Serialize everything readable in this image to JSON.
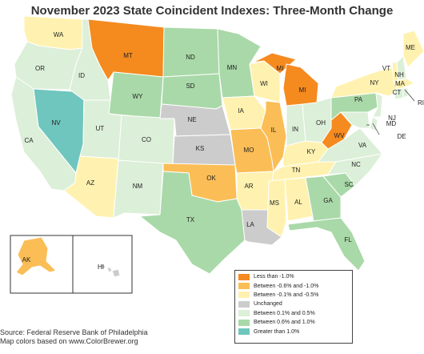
{
  "title": "November 2023 State Coincident Indexes: Three-Month Change",
  "legend": [
    {
      "key": "lt_-1.0",
      "label": "Less than -1.0%",
      "color": "#f58a1f"
    },
    {
      "key": "-0.6_-1.0",
      "label": "Between -0.6% and -1.0%",
      "color": "#fbbd55"
    },
    {
      "key": "-0.1_-0.5",
      "label": "Between -0.1% and -0.5%",
      "color": "#fff2b0"
    },
    {
      "key": "0",
      "label": "Unchanged",
      "color": "#cccccc"
    },
    {
      "key": "0.1_0.5",
      "label": "Between 0.1% and 0.5%",
      "color": "#dcefd8"
    },
    {
      "key": "0.6_1.0",
      "label": "Between 0.6% and 1.0%",
      "color": "#a9d9a8"
    },
    {
      "key": "gt_1.0",
      "label": "Greater than 1.0%",
      "color": "#6fc6be"
    }
  ],
  "states": [
    {
      "abbr": "WA",
      "category": "-0.1_-0.5"
    },
    {
      "abbr": "OR",
      "category": "0.1_0.5"
    },
    {
      "abbr": "CA",
      "category": "0.1_0.5"
    },
    {
      "abbr": "NV",
      "category": "gt_1.0"
    },
    {
      "abbr": "ID",
      "category": "0.1_0.5"
    },
    {
      "abbr": "MT",
      "category": "lt_-1.0"
    },
    {
      "abbr": "WY",
      "category": "0.6_1.0"
    },
    {
      "abbr": "UT",
      "category": "0.1_0.5"
    },
    {
      "abbr": "CO",
      "category": "0.1_0.5"
    },
    {
      "abbr": "AZ",
      "category": "-0.1_-0.5"
    },
    {
      "abbr": "NM",
      "category": "0.1_0.5"
    },
    {
      "abbr": "ND",
      "category": "0.6_1.0"
    },
    {
      "abbr": "SD",
      "category": "0.6_1.0"
    },
    {
      "abbr": "NE",
      "category": "0"
    },
    {
      "abbr": "KS",
      "category": "0"
    },
    {
      "abbr": "OK",
      "category": "-0.6_-1.0"
    },
    {
      "abbr": "TX",
      "category": "0.6_1.0"
    },
    {
      "abbr": "MN",
      "category": "0.6_1.0"
    },
    {
      "abbr": "IA",
      "category": "-0.1_-0.5"
    },
    {
      "abbr": "MO",
      "category": "-0.6_-1.0"
    },
    {
      "abbr": "AR",
      "category": "-0.1_-0.5"
    },
    {
      "abbr": "LA",
      "category": "0"
    },
    {
      "abbr": "WI",
      "category": "-0.1_-0.5"
    },
    {
      "abbr": "IL",
      "category": "-0.6_-1.0"
    },
    {
      "abbr": "MS",
      "category": "-0.1_-0.5"
    },
    {
      "abbr": "AL",
      "category": "-0.1_-0.5"
    },
    {
      "abbr": "TN",
      "category": "-0.1_-0.5"
    },
    {
      "abbr": "KY",
      "category": "-0.1_-0.5"
    },
    {
      "abbr": "IN",
      "category": "0.1_0.5"
    },
    {
      "abbr": "OH",
      "category": "0.1_0.5"
    },
    {
      "abbr": "MI",
      "category": "lt_-1.0"
    },
    {
      "abbr": "MI",
      "category": "lt_-1.0"
    },
    {
      "abbr": "GA",
      "category": "0.6_1.0"
    },
    {
      "abbr": "FL",
      "category": "0.6_1.0"
    },
    {
      "abbr": "SC",
      "category": "0.6_1.0"
    },
    {
      "abbr": "NC",
      "category": "0.1_0.5"
    },
    {
      "abbr": "VA",
      "category": "0.1_0.5"
    },
    {
      "abbr": "WV",
      "category": "lt_-1.0"
    },
    {
      "abbr": "PA",
      "category": "0.6_1.0"
    },
    {
      "abbr": "NY",
      "category": "-0.1_-0.5"
    },
    {
      "abbr": "VT",
      "category": "-0.1_-0.5"
    },
    {
      "abbr": "NH",
      "category": "0.1_0.5"
    },
    {
      "abbr": "ME",
      "category": "-0.1_-0.5"
    },
    {
      "abbr": "MA",
      "category": "-0.1_-0.5"
    },
    {
      "abbr": "CT",
      "category": "0.1_0.5"
    },
    {
      "abbr": "RI",
      "category": "0.1_0.5"
    },
    {
      "abbr": "NJ",
      "category": "0.1_0.5"
    },
    {
      "abbr": "DE",
      "category": "0.1_0.5"
    },
    {
      "abbr": "MD",
      "category": "0.1_0.5"
    },
    {
      "abbr": "AK",
      "category": "-0.6_-1.0"
    },
    {
      "abbr": "HI",
      "category": "0"
    }
  ],
  "source": {
    "line1": "Source: Federal Reserve Bank of Philadelphia",
    "line2": "Map colors based on www.ColorBrewer.org"
  }
}
